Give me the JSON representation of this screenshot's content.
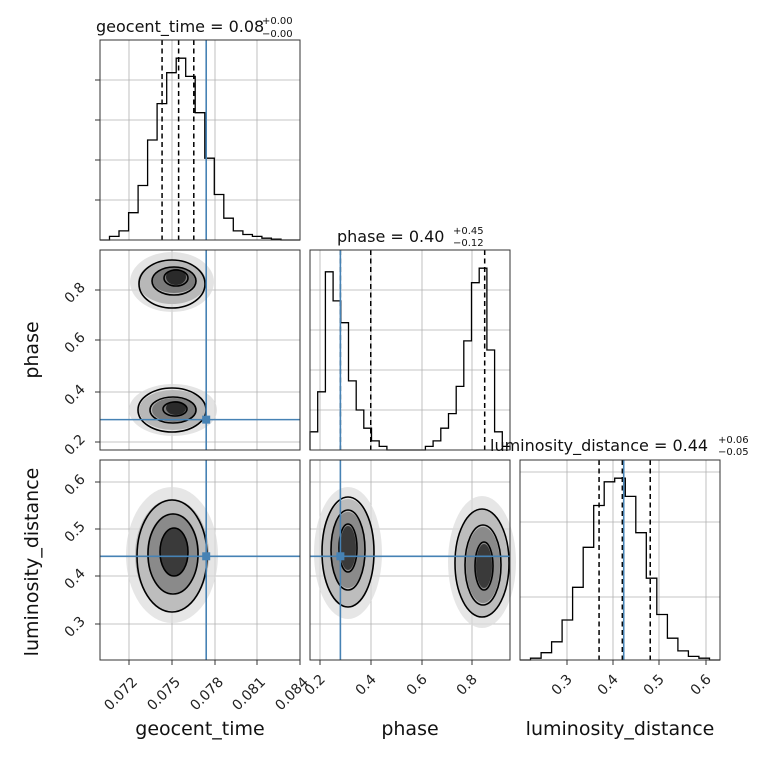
{
  "colors": {
    "truth": "#4682b4",
    "line": "#000000",
    "grid": "#b0b0b0"
  },
  "chart_data": {
    "type": "corner",
    "grid": true,
    "parameters": [
      {
        "key": "geocent_time",
        "label": "geocent_time",
        "range": [
          0.0695,
          0.084
        ],
        "ticks": [
          "0.072",
          "0.075",
          "0.078",
          "0.081",
          "0.084"
        ],
        "tick_values": [
          0.072,
          0.075,
          0.078,
          0.081,
          0.084
        ],
        "title_prefix": "geocent_time = 0.08",
        "title_sup": "+0.00",
        "title_sub": "−0.00",
        "median": 0.0752,
        "q_low": 0.074,
        "q_high": 0.0763,
        "truth": 0.0772
      },
      {
        "key": "phase",
        "label": "phase",
        "range": [
          0.16,
          0.95
        ],
        "ticks": [
          "0.2",
          "0.4",
          "0.6",
          "0.8"
        ],
        "tick_values": [
          0.2,
          0.4,
          0.6,
          0.8
        ],
        "title_prefix": "phase = 0.40",
        "title_sup": "+0.45",
        "title_sub": "−0.12",
        "median": 0.4,
        "q_low": 0.28,
        "q_high": 0.85,
        "truth": 0.28
      },
      {
        "key": "luminosity_distance",
        "label": "luminosity_distance",
        "range": [
          0.22,
          0.65
        ],
        "ticks": [
          "0.3",
          "0.4",
          "0.5",
          "0.6"
        ],
        "tick_values": [
          0.3,
          0.4,
          0.5,
          0.6
        ],
        "title_prefix": "luminosity_distance = 0.44",
        "title_sup": "+0.06",
        "title_sub": "−0.05",
        "median": 0.44,
        "q_low": 0.39,
        "q_high": 0.5,
        "truth": 0.443
      }
    ],
    "histograms": {
      "geocent_time": [
        0,
        0.02,
        0.05,
        0.15,
        0.3,
        0.55,
        0.75,
        0.92,
        1.0,
        0.9,
        0.7,
        0.45,
        0.25,
        0.12,
        0.05,
        0.03,
        0.02,
        0.01,
        0.005,
        0,
        0
      ],
      "phase": [
        0.1,
        0.32,
        0.98,
        0.82,
        0.7,
        0.38,
        0.22,
        0.12,
        0.05,
        0.02,
        0,
        0,
        0,
        0,
        0,
        0.02,
        0.05,
        0.12,
        0.2,
        0.35,
        0.6,
        0.92,
        1.0,
        0.55,
        0.1,
        0.02
      ],
      "luminosity_distance": [
        0,
        0.01,
        0.04,
        0.1,
        0.22,
        0.4,
        0.62,
        0.85,
        0.98,
        1.0,
        0.9,
        0.7,
        0.45,
        0.25,
        0.12,
        0.05,
        0.02,
        0.01,
        0
      ]
    },
    "hist_ylim": [
      0,
      1.1
    ]
  }
}
